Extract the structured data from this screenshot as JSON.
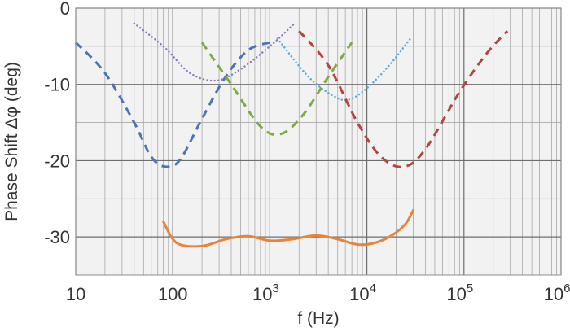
{
  "chart_data": {
    "type": "line",
    "title": "",
    "xlabel": "f (Hz)",
    "ylabel": "Phase Shift Δφ (deg)",
    "xscale": "log",
    "xlim": [
      10,
      1000000
    ],
    "ylim": [
      -35,
      0
    ],
    "grid": true,
    "legend": "none",
    "x_ticks": [
      {
        "value": 10,
        "label": "10"
      },
      {
        "value": 100,
        "label": "100"
      },
      {
        "value": 1000,
        "label": "10",
        "exp": "3"
      },
      {
        "value": 10000,
        "label": "10",
        "exp": "4"
      },
      {
        "value": 100000,
        "label": "10",
        "exp": "5"
      },
      {
        "value": 1000000,
        "label": "10",
        "exp": "6"
      }
    ],
    "y_ticks": [
      {
        "value": 0,
        "label": "0"
      },
      {
        "value": -10,
        "label": "-10"
      },
      {
        "value": -20,
        "label": "-20"
      },
      {
        "value": -30,
        "label": "-30"
      }
    ],
    "series": [
      {
        "color": "#4a74b4",
        "style": "dashed",
        "x": [
          10,
          20,
          40,
          60,
          85,
          120,
          200,
          350,
          600,
          1000
        ],
        "y": [
          -4.5,
          -8.5,
          -15,
          -19.5,
          -20.8,
          -19.8,
          -14.5,
          -9,
          -5.5,
          -4.5
        ]
      },
      {
        "color": "#8a7bbf",
        "style": "dotted",
        "x": [
          40,
          80,
          150,
          280,
          500,
          1000,
          1800
        ],
        "y": [
          -2,
          -5,
          -8.5,
          -9.5,
          -8,
          -5,
          -2
        ]
      },
      {
        "color": "#7faa3f",
        "style": "dashed",
        "x": [
          200,
          400,
          800,
          1300,
          2200,
          4000,
          7000
        ],
        "y": [
          -4.5,
          -10,
          -15.5,
          -16.5,
          -14,
          -9,
          -4.5
        ]
      },
      {
        "color": "#59a9d6",
        "style": "dotted",
        "x": [
          1200,
          2500,
          4500,
          6500,
          10000,
          17000,
          28000
        ],
        "y": [
          -4,
          -9,
          -11.5,
          -12,
          -10.5,
          -7.5,
          -4
        ]
      },
      {
        "color": "#b5433e",
        "style": "dashed",
        "x": [
          2000,
          4000,
          8000,
          14000,
          24000,
          40000,
          90000,
          170000,
          280000
        ],
        "y": [
          -3,
          -7.5,
          -15,
          -19.5,
          -20.8,
          -18.5,
          -11,
          -6,
          -3
        ]
      },
      {
        "color": "#e8843a",
        "style": "solid",
        "x": [
          80,
          110,
          200,
          350,
          600,
          1000,
          1700,
          3000,
          5000,
          8000,
          12000,
          18000,
          25000,
          30000
        ],
        "y": [
          -28,
          -30.8,
          -31.2,
          -30.3,
          -29.9,
          -30.5,
          -30.3,
          -29.8,
          -30.3,
          -31.0,
          -30.8,
          -29.8,
          -28.3,
          -26.5
        ]
      }
    ]
  }
}
